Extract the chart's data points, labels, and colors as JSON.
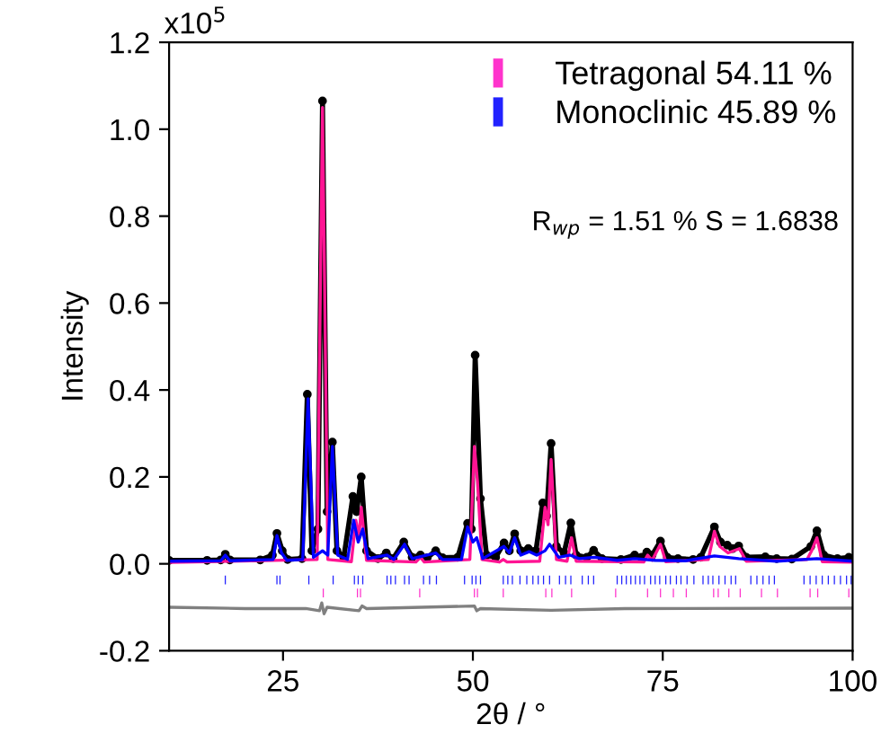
{
  "chart_data": {
    "type": "line",
    "xlabel": "2θ / °",
    "ylabel": "Intensity",
    "xlim": [
      10,
      100
    ],
    "xticks": [
      25,
      50,
      75,
      100
    ],
    "ylim": [
      -0.2,
      1.2
    ],
    "yticks": [
      {
        "value": -0.2,
        "label": "-0.2"
      },
      {
        "value": 0,
        "label": "0.0"
      },
      0.2,
      0.4,
      0.6,
      0.8,
      {
        "value": 1,
        "label": "1.0"
      },
      1.2
    ],
    "grid": false,
    "legend": "top right",
    "annotations": [
      "R$_{wp}$ = 1.51 % S = 1.6838",
      "x10$^{5}$"
    ],
    "series": [
      {
        "color": "#000000",
        "marker": "circle",
        "x": [
          10,
          15,
          16.8,
          17.4,
          18,
          22,
          23.6,
          24.2,
          24.9,
          25.6,
          27.5,
          28.2,
          28.8,
          29.6,
          30.2,
          30.8,
          31.5,
          32.1,
          33,
          34.2,
          34.7,
          35.3,
          36,
          37.5,
          38.6,
          39.5,
          40.9,
          42,
          43.1,
          44,
          45.1,
          46,
          48,
          49.3,
          49.8,
          50.3,
          51,
          51.8,
          53,
          54.1,
          54.8,
          55.5,
          56.3,
          57.3,
          58.3,
          59.2,
          59.7,
          60.3,
          61,
          62,
          62.9,
          63.6,
          65,
          65.9,
          67,
          69.5,
          71.3,
          72.2,
          72.9,
          73.6,
          74.7,
          75.6,
          77,
          79,
          80,
          81.8,
          82.6,
          83.5,
          84.2,
          85,
          86,
          88.5,
          90,
          92,
          94.5,
          95.3,
          96.2,
          98,
          99.5,
          100
        ],
        "values": [
          0.008,
          0.008,
          0.009,
          0.022,
          0.009,
          0.009,
          0.02,
          0.07,
          0.03,
          0.01,
          0.012,
          0.39,
          0.03,
          0.08,
          1.065,
          0.12,
          0.28,
          0.03,
          0.015,
          0.155,
          0.12,
          0.2,
          0.03,
          0.012,
          0.025,
          0.012,
          0.05,
          0.015,
          0.02,
          0.014,
          0.03,
          0.014,
          0.015,
          0.093,
          0.08,
          0.48,
          0.15,
          0.02,
          0.015,
          0.048,
          0.03,
          0.069,
          0.03,
          0.035,
          0.03,
          0.14,
          0.11,
          0.277,
          0.04,
          0.025,
          0.094,
          0.02,
          0.015,
          0.031,
          0.012,
          0.01,
          0.02,
          0.015,
          0.027,
          0.02,
          0.052,
          0.015,
          0.012,
          0.01,
          0.015,
          0.085,
          0.05,
          0.043,
          0.035,
          0.041,
          0.015,
          0.016,
          0.012,
          0.011,
          0.04,
          0.076,
          0.02,
          0.012,
          0.015,
          0.012
        ]
      },
      {
        "color": "#ff1493",
        "marker": "none",
        "x": [
          10,
          29.5,
          30.2,
          30.9,
          34,
          34.6,
          35,
          35.3,
          36,
          42.5,
          43.1,
          43.6,
          49.6,
          50.2,
          50.6,
          51.2,
          53.5,
          54,
          54.5,
          58.8,
          59.5,
          59.9,
          60.3,
          61,
          62.4,
          63,
          63.6,
          72.5,
          73,
          73.6,
          74.7,
          75.4,
          81,
          81.8,
          82.5,
          83.6,
          85.1,
          86,
          94,
          94.6,
          95.3,
          96,
          100
        ],
        "values": [
          0.003,
          0.01,
          1.05,
          0.01,
          0.005,
          0.1,
          0.06,
          0.13,
          0.008,
          0.004,
          0.015,
          0.004,
          0.01,
          0.27,
          0.19,
          0.01,
          0.004,
          0.01,
          0.004,
          0.006,
          0.13,
          0.09,
          0.24,
          0.01,
          0.006,
          0.06,
          0.006,
          0.004,
          0.02,
          0.008,
          0.045,
          0.005,
          0.01,
          0.075,
          0.04,
          0.025,
          0.035,
          0.006,
          0.01,
          0.03,
          0.06,
          0.005,
          0.004
        ]
      },
      {
        "color": "#0000ff",
        "marker": "none",
        "x": [
          10,
          16.8,
          17.4,
          18,
          23.7,
          24.2,
          24.8,
          25.5,
          27.6,
          28.3,
          29,
          30.2,
          30.9,
          31.5,
          32.2,
          33.5,
          34.3,
          34.9,
          35.5,
          36.2,
          38.7,
          39.6,
          41,
          42,
          45.1,
          46,
          48.5,
          49.3,
          50,
          50.5,
          51.3,
          54.1,
          54.8,
          55.5,
          56.3,
          57.4,
          58.4,
          59.5,
          60.1,
          61.3,
          62.8,
          64,
          66,
          69,
          71.3,
          74,
          78,
          81.8,
          85,
          90,
          95.3,
          100
        ],
        "values": [
          0.006,
          0.007,
          0.02,
          0.007,
          0.01,
          0.065,
          0.025,
          0.008,
          0.01,
          0.38,
          0.015,
          0.03,
          0.02,
          0.27,
          0.02,
          0.01,
          0.1,
          0.05,
          0.08,
          0.012,
          0.02,
          0.01,
          0.045,
          0.012,
          0.025,
          0.01,
          0.01,
          0.085,
          0.05,
          0.06,
          0.012,
          0.04,
          0.025,
          0.06,
          0.02,
          0.028,
          0.02,
          0.03,
          0.045,
          0.015,
          0.02,
          0.012,
          0.015,
          0.008,
          0.012,
          0.008,
          0.007,
          0.018,
          0.012,
          0.006,
          0.012,
          0.006
        ]
      },
      {
        "color": "#808080",
        "marker": "none",
        "x": [
          10,
          20,
          28,
          29.8,
          30.1,
          30.4,
          30.8,
          35,
          35.4,
          36,
          50.2,
          50.5,
          51,
          60.3,
          70,
          100
        ],
        "values": [
          -0.1,
          -0.103,
          -0.103,
          -0.108,
          -0.09,
          -0.115,
          -0.1,
          -0.108,
          -0.097,
          -0.103,
          -0.097,
          -0.108,
          -0.103,
          -0.107,
          -0.103,
          -0.102
        ]
      },
      {
        "type": "bar",
        "name": "Tetragonal 54.11 %",
        "color": "#ff33cc",
        "base": [
          -0.077,
          -0.077,
          -0.077,
          -0.077,
          -0.077,
          -0.077,
          -0.077,
          -0.077,
          -0.077,
          -0.077,
          -0.077,
          -0.077,
          -0.077,
          -0.077,
          -0.077,
          -0.077,
          -0.077,
          -0.077,
          -0.077,
          -0.077,
          -0.077,
          -0.077,
          -0.077,
          -0.077
        ],
        "x": [
          30.3,
          34.8,
          35.2,
          43.0,
          50.2,
          50.6,
          54.0,
          59.6,
          60.4,
          63.0,
          68.8,
          73.0,
          74.7,
          76.4,
          78.1,
          81.7,
          82.3,
          83.7,
          85.2,
          88.0,
          90.1,
          94.4,
          95.4,
          99.5
        ],
        "values": [
          0.02,
          0.02,
          0.02,
          0.02,
          0.02,
          0.02,
          0.02,
          0.02,
          0.02,
          0.02,
          0.02,
          0.02,
          0.02,
          0.02,
          0.02,
          0.02,
          0.02,
          0.02,
          0.02,
          0.02,
          0.02,
          0.02,
          0.02,
          0.02
        ]
      },
      {
        "type": "bar",
        "name": "Monoclinic 45.89 %",
        "color": "#2222ff",
        "base": [
          -0.047,
          -0.047,
          -0.047,
          -0.047,
          -0.047,
          -0.047,
          -0.047,
          -0.047,
          -0.047,
          -0.047,
          -0.047,
          -0.047,
          -0.047,
          -0.047,
          -0.047,
          -0.047,
          -0.047,
          -0.047,
          -0.047,
          -0.047,
          -0.047,
          -0.047,
          -0.047,
          -0.047,
          -0.047,
          -0.047,
          -0.047,
          -0.047,
          -0.047,
          -0.047,
          -0.047,
          -0.047,
          -0.047,
          -0.047,
          -0.047,
          -0.047,
          -0.047,
          -0.047,
          -0.047,
          -0.047,
          -0.047,
          -0.047,
          -0.047,
          -0.047,
          -0.047,
          -0.047,
          -0.047,
          -0.047,
          -0.047,
          -0.047,
          -0.047,
          -0.047,
          -0.047,
          -0.047,
          -0.047,
          -0.047,
          -0.047,
          -0.047,
          -0.047,
          -0.047,
          -0.047,
          -0.047,
          -0.047,
          -0.047,
          -0.047,
          -0.047,
          -0.047,
          -0.047,
          -0.047,
          -0.047,
          -0.047,
          -0.047
        ],
        "x": [
          17.4,
          24.2,
          24.6,
          28.4,
          31.6,
          34.4,
          34.9,
          35.5,
          38.7,
          39.2,
          39.8,
          41.0,
          41.6,
          43.5,
          44.3,
          45.2,
          48.9,
          49.9,
          50.4,
          51.0,
          54.0,
          54.6,
          55.2,
          56.2,
          57.1,
          57.9,
          58.6,
          59.3,
          60.1,
          61.4,
          62.2,
          62.9,
          64.4,
          65.2,
          65.9,
          69.0,
          69.6,
          70.2,
          70.8,
          71.4,
          72.0,
          72.6,
          73.4,
          74.0,
          74.6,
          75.4,
          76.0,
          76.8,
          77.4,
          78.2,
          79.1,
          80.3,
          81.0,
          81.6,
          82.4,
          83.2,
          84.0,
          84.6,
          86.6,
          87.4,
          88.2,
          89.0,
          89.7,
          93.6,
          94.4,
          95.2,
          96.0,
          96.8,
          97.6,
          98.4,
          99.2,
          99.8
        ],
        "values": [
          0.02,
          0.02,
          0.02,
          0.02,
          0.02,
          0.02,
          0.02,
          0.02,
          0.02,
          0.02,
          0.02,
          0.02,
          0.02,
          0.02,
          0.02,
          0.02,
          0.02,
          0.02,
          0.02,
          0.02,
          0.02,
          0.02,
          0.02,
          0.02,
          0.02,
          0.02,
          0.02,
          0.02,
          0.02,
          0.02,
          0.02,
          0.02,
          0.02,
          0.02,
          0.02,
          0.02,
          0.02,
          0.02,
          0.02,
          0.02,
          0.02,
          0.02,
          0.02,
          0.02,
          0.02,
          0.02,
          0.02,
          0.02,
          0.02,
          0.02,
          0.02,
          0.02,
          0.02,
          0.02,
          0.02,
          0.02,
          0.02,
          0.02,
          0.02,
          0.02,
          0.02,
          0.02,
          0.02,
          0.02,
          0.02,
          0.02,
          0.02,
          0.02,
          0.02,
          0.02,
          0.02,
          0.02
        ]
      }
    ]
  }
}
